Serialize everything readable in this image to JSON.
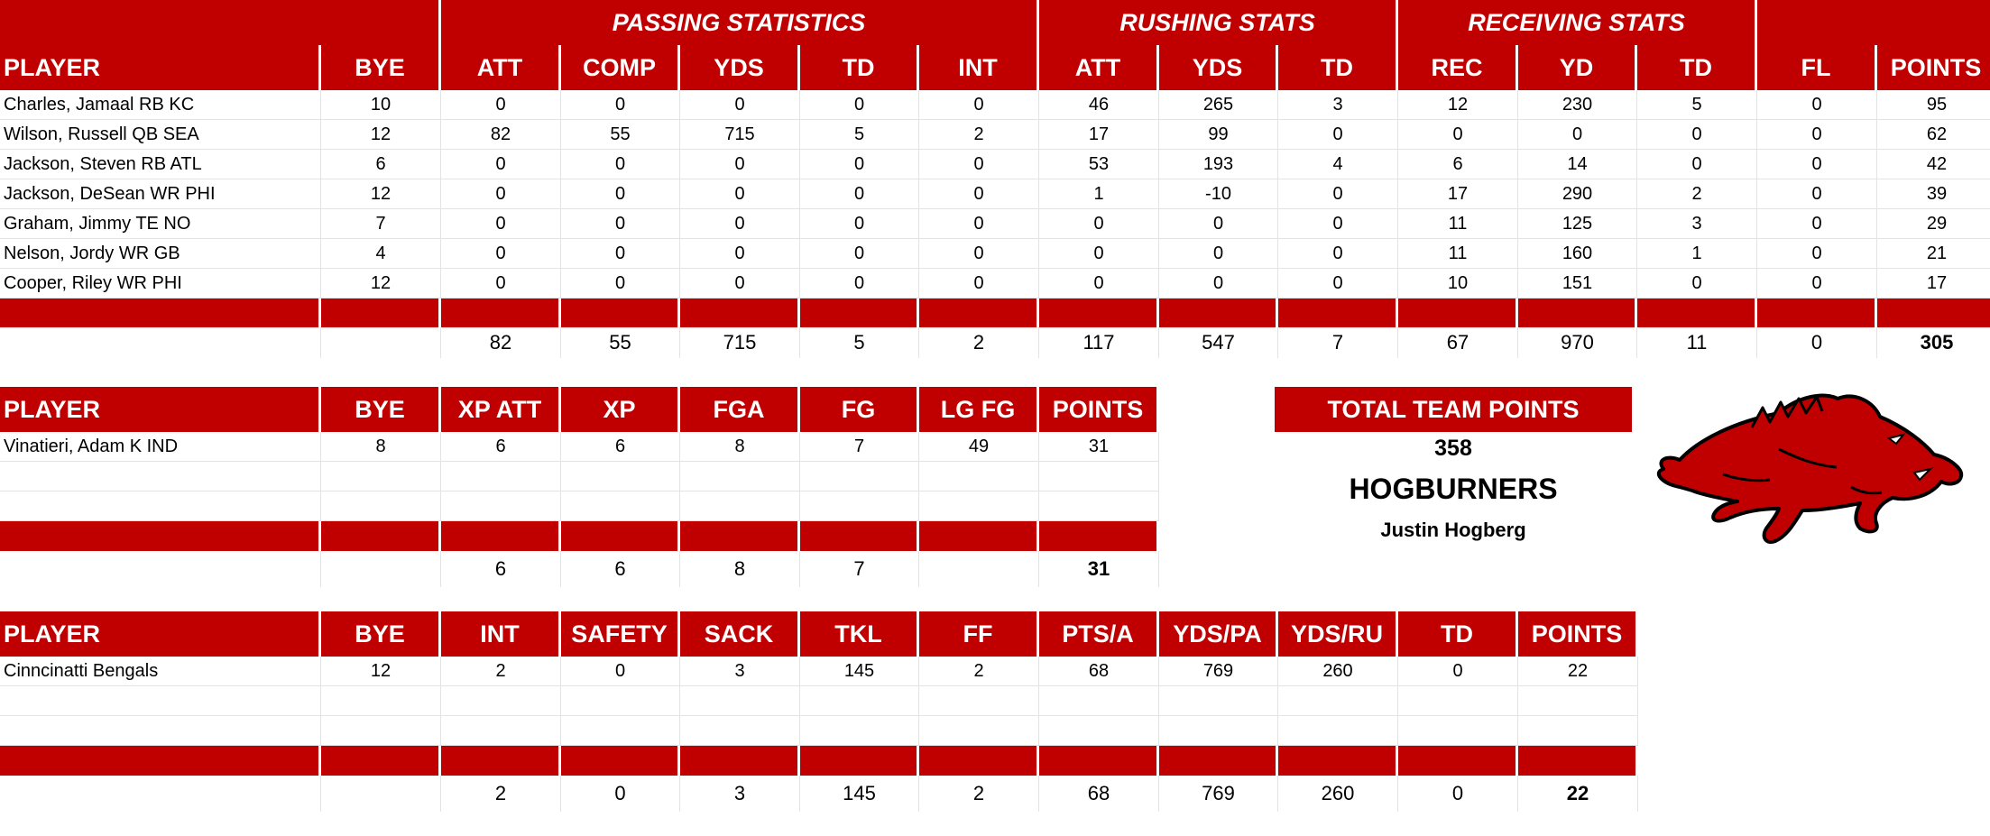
{
  "colors": {
    "accent": "#c00000",
    "text": "#000000",
    "header_text": "#ffffff"
  },
  "offense": {
    "group_headers": {
      "passing": "PASSING STATISTICS",
      "rushing": "RUSHING STATS",
      "receiving": "RECEIVING STATS"
    },
    "columns": [
      "PLAYER",
      "BYE",
      "ATT",
      "COMP",
      "YDS",
      "TD",
      "INT",
      "ATT",
      "YDS",
      "TD",
      "REC",
      "YD",
      "TD",
      "FL",
      "POINTS"
    ],
    "rows": [
      [
        "Charles, Jamaal RB KC",
        "10",
        "0",
        "0",
        "0",
        "0",
        "0",
        "46",
        "265",
        "3",
        "12",
        "230",
        "5",
        "0",
        "95"
      ],
      [
        "Wilson, Russell QB SEA",
        "12",
        "82",
        "55",
        "715",
        "5",
        "2",
        "17",
        "99",
        "0",
        "0",
        "0",
        "0",
        "0",
        "62"
      ],
      [
        "Jackson, Steven RB ATL",
        "6",
        "0",
        "0",
        "0",
        "0",
        "0",
        "53",
        "193",
        "4",
        "6",
        "14",
        "0",
        "0",
        "42"
      ],
      [
        "Jackson, DeSean WR PHI",
        "12",
        "0",
        "0",
        "0",
        "0",
        "0",
        "1",
        "-10",
        "0",
        "17",
        "290",
        "2",
        "0",
        "39"
      ],
      [
        "Graham, Jimmy TE NO",
        "7",
        "0",
        "0",
        "0",
        "0",
        "0",
        "0",
        "0",
        "0",
        "11",
        "125",
        "3",
        "0",
        "29"
      ],
      [
        "Nelson, Jordy WR GB",
        "4",
        "0",
        "0",
        "0",
        "0",
        "0",
        "0",
        "0",
        "0",
        "11",
        "160",
        "1",
        "0",
        "21"
      ],
      [
        "Cooper, Riley WR PHI",
        "12",
        "0",
        "0",
        "0",
        "0",
        "0",
        "0",
        "0",
        "0",
        "10",
        "151",
        "0",
        "0",
        "17"
      ]
    ],
    "totals": [
      "",
      "",
      "82",
      "55",
      "715",
      "5",
      "2",
      "117",
      "547",
      "7",
      "67",
      "970",
      "11",
      "0",
      "305"
    ]
  },
  "kicker": {
    "columns": [
      "PLAYER",
      "BYE",
      "XP ATT",
      "XP",
      "FGA",
      "FG",
      "LG FG",
      "POINTS"
    ],
    "rows": [
      [
        "Vinatieri, Adam K IND",
        "8",
        "6",
        "6",
        "8",
        "7",
        "49",
        "31"
      ],
      [
        "",
        "",
        "",
        "",
        "",
        "",
        "",
        ""
      ],
      [
        "",
        "",
        "",
        "",
        "",
        "",
        "",
        ""
      ]
    ],
    "totals": [
      "",
      "",
      "6",
      "6",
      "8",
      "7",
      "",
      "31"
    ]
  },
  "defense": {
    "columns": [
      "PLAYER",
      "BYE",
      "INT",
      "SAFETY",
      "SACK",
      "TKL",
      "FF",
      "PTS/A",
      "YDS/PA",
      "YDS/RU",
      "TD",
      "POINTS"
    ],
    "rows": [
      [
        "Cinncinatti Bengals",
        "12",
        "2",
        "0",
        "3",
        "145",
        "2",
        "68",
        "769",
        "260",
        "0",
        "22"
      ],
      [
        "",
        "",
        "",
        "",
        "",
        "",
        "",
        "",
        "",
        "",
        "",
        ""
      ],
      [
        "",
        "",
        "",
        "",
        "",
        "",
        "",
        "",
        "",
        "",
        "",
        ""
      ]
    ],
    "totals": [
      "",
      "",
      "2",
      "0",
      "3",
      "145",
      "2",
      "68",
      "769",
      "260",
      "0",
      "22"
    ]
  },
  "team": {
    "total_label": "TOTAL TEAM POINTS",
    "total_points": "358",
    "name": "HOGBURNERS",
    "owner": "Justin Hogberg"
  },
  "logo": {
    "icon": "razorback-hog-icon"
  }
}
